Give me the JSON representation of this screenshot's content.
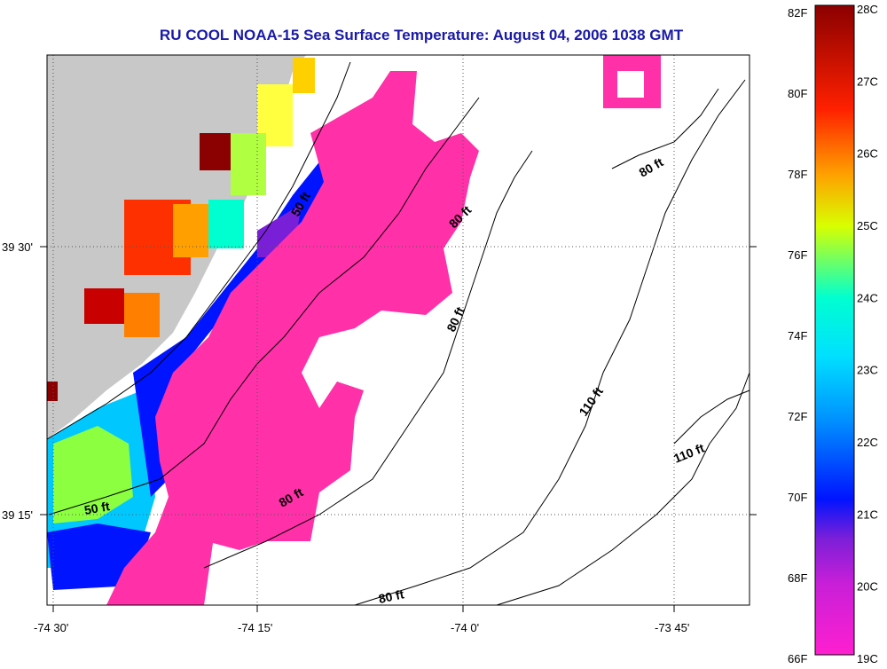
{
  "title": "RU COOL  NOAA-15  Sea Surface Temperature:  August 04, 2006 1038 GMT",
  "axes": {
    "x_ticks": [
      "-74 30'",
      "-74 15'",
      "-74 0'",
      "-73 45'"
    ],
    "y_ticks": [
      "39 30'",
      "39 15'"
    ]
  },
  "contour_labels": [
    "50 ft",
    "80 ft",
    "80 ft",
    "80 ft",
    "80 ft",
    "110 ft",
    "110 ft",
    "50 ft",
    "80 ft"
  ],
  "colorbar": {
    "fahrenheit_labels": [
      "82F",
      "80F",
      "78F",
      "76F",
      "74F",
      "72F",
      "70F",
      "68F",
      "66F"
    ],
    "celsius_labels": [
      "28C",
      "27C",
      "26C",
      "25C",
      "24C",
      "23C",
      "22C",
      "21C",
      "20C",
      "19C"
    ],
    "colors": [
      "#ff1fd0",
      "#7a1fd8",
      "#0014ff",
      "#00c8ff",
      "#00ffd0",
      "#d8ff00",
      "#ffa000",
      "#ff2000",
      "#8b0000"
    ]
  },
  "legend_colors": {
    "land": "#c8c8c8",
    "cold_water": "#ff30a8",
    "cloud_mask": "#ffffff"
  }
}
